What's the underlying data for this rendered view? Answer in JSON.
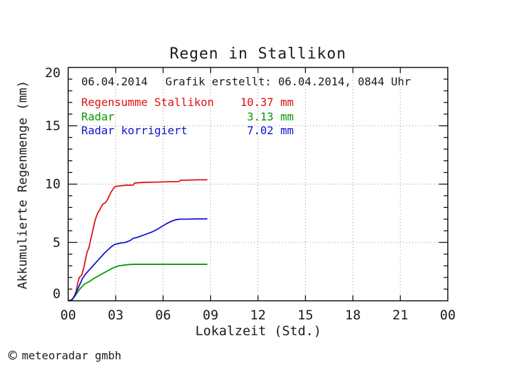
{
  "title": "Regen in Stallikon",
  "header": {
    "date": "06.04.2014",
    "created": "Grafik erstellt: 06.04.2014, 0844 Uhr"
  },
  "legend": [
    {
      "label": "Regensumme Stallikon",
      "value": "10.37",
      "unit": "mm",
      "color": "#dd1111"
    },
    {
      "label": "Radar",
      "value": "3.13",
      "unit": "mm",
      "color": "#009a00"
    },
    {
      "label": "Radar korrigiert",
      "value": "7.02",
      "unit": "mm",
      "color": "#1111cc"
    }
  ],
  "footer": {
    "copyright_symbol": "©",
    "text": "meteoradar gmbh"
  },
  "chart_data": {
    "type": "line",
    "title": "Regen in Stallikon",
    "xlabel": "Lokalzeit (Std.)",
    "ylabel": "Akkumulierte Regenmenge (mm)",
    "xlim": [
      0,
      24
    ],
    "ylim": [
      0,
      20
    ],
    "xticks": {
      "values": [
        0,
        3,
        6,
        9,
        12,
        15,
        18,
        21,
        24
      ],
      "labels": [
        "00",
        "03",
        "06",
        "09",
        "12",
        "15",
        "18",
        "21",
        "00"
      ]
    },
    "yticks": {
      "values": [
        0,
        5,
        10,
        15,
        20
      ],
      "labels": [
        "0",
        "5",
        "10",
        "15",
        "20"
      ]
    },
    "y_minor_step": 1,
    "grid": {
      "style": "dotted",
      "color": "#8a8a8a",
      "x_major": true,
      "y_major": true
    },
    "axis_color": "#000000",
    "legend_position": "top-left-inside",
    "series": [
      {
        "name": "Regensumme Stallikon",
        "total_mm": 10.37,
        "color": "#dd1111",
        "points": [
          [
            0,
            0
          ],
          [
            0.2,
            0.05
          ],
          [
            0.35,
            0.3
          ],
          [
            0.5,
            0.8
          ],
          [
            0.6,
            1.5
          ],
          [
            0.7,
            2.0
          ],
          [
            0.85,
            2.2
          ],
          [
            1.0,
            2.9
          ],
          [
            1.1,
            3.6
          ],
          [
            1.2,
            4.2
          ],
          [
            1.3,
            4.5
          ],
          [
            1.4,
            5.1
          ],
          [
            1.5,
            5.7
          ],
          [
            1.6,
            6.3
          ],
          [
            1.7,
            6.9
          ],
          [
            1.8,
            7.3
          ],
          [
            1.9,
            7.6
          ],
          [
            2.0,
            7.8
          ],
          [
            2.1,
            8.1
          ],
          [
            2.2,
            8.3
          ],
          [
            2.35,
            8.4
          ],
          [
            2.5,
            8.7
          ],
          [
            2.6,
            9.0
          ],
          [
            2.7,
            9.3
          ],
          [
            2.8,
            9.5
          ],
          [
            2.9,
            9.7
          ],
          [
            3.0,
            9.8
          ],
          [
            3.3,
            9.85
          ],
          [
            3.6,
            9.9
          ],
          [
            4.1,
            9.92
          ],
          [
            4.2,
            10.1
          ],
          [
            4.8,
            10.15
          ],
          [
            5.5,
            10.17
          ],
          [
            6.2,
            10.2
          ],
          [
            7.0,
            10.22
          ],
          [
            7.1,
            10.33
          ],
          [
            7.8,
            10.35
          ],
          [
            8.2,
            10.37
          ],
          [
            8.8,
            10.37
          ]
        ]
      },
      {
        "name": "Radar",
        "total_mm": 3.13,
        "color": "#009a00",
        "points": [
          [
            0,
            0
          ],
          [
            0.25,
            0.1
          ],
          [
            0.4,
            0.35
          ],
          [
            0.5,
            0.55
          ],
          [
            0.6,
            0.75
          ],
          [
            0.7,
            0.95
          ],
          [
            0.8,
            1.1
          ],
          [
            0.9,
            1.25
          ],
          [
            1.0,
            1.4
          ],
          [
            1.2,
            1.55
          ],
          [
            1.4,
            1.7
          ],
          [
            1.6,
            1.9
          ],
          [
            1.8,
            2.05
          ],
          [
            2.0,
            2.2
          ],
          [
            2.2,
            2.35
          ],
          [
            2.4,
            2.5
          ],
          [
            2.6,
            2.65
          ],
          [
            2.8,
            2.8
          ],
          [
            3.0,
            2.9
          ],
          [
            3.2,
            3.0
          ],
          [
            3.5,
            3.05
          ],
          [
            3.8,
            3.1
          ],
          [
            4.2,
            3.13
          ],
          [
            8.8,
            3.13
          ]
        ]
      },
      {
        "name": "Radar korrigiert",
        "total_mm": 7.02,
        "color": "#1111cc",
        "points": [
          [
            0,
            0
          ],
          [
            0.25,
            0.1
          ],
          [
            0.4,
            0.4
          ],
          [
            0.5,
            0.7
          ],
          [
            0.6,
            1.0
          ],
          [
            0.7,
            1.3
          ],
          [
            0.8,
            1.6
          ],
          [
            0.9,
            1.9
          ],
          [
            1.0,
            2.1
          ],
          [
            1.1,
            2.3
          ],
          [
            1.2,
            2.45
          ],
          [
            1.3,
            2.6
          ],
          [
            1.5,
            2.9
          ],
          [
            1.7,
            3.2
          ],
          [
            1.9,
            3.5
          ],
          [
            2.1,
            3.8
          ],
          [
            2.3,
            4.1
          ],
          [
            2.5,
            4.35
          ],
          [
            2.7,
            4.6
          ],
          [
            2.9,
            4.8
          ],
          [
            3.0,
            4.85
          ],
          [
            3.3,
            4.95
          ],
          [
            3.6,
            5.0
          ],
          [
            3.9,
            5.15
          ],
          [
            4.1,
            5.35
          ],
          [
            4.4,
            5.45
          ],
          [
            4.7,
            5.6
          ],
          [
            5.0,
            5.75
          ],
          [
            5.3,
            5.9
          ],
          [
            5.6,
            6.1
          ],
          [
            5.9,
            6.35
          ],
          [
            6.2,
            6.6
          ],
          [
            6.5,
            6.8
          ],
          [
            6.8,
            6.95
          ],
          [
            7.1,
            7.0
          ],
          [
            7.6,
            7.0
          ],
          [
            8.1,
            7.02
          ],
          [
            8.8,
            7.02
          ]
        ]
      }
    ]
  }
}
